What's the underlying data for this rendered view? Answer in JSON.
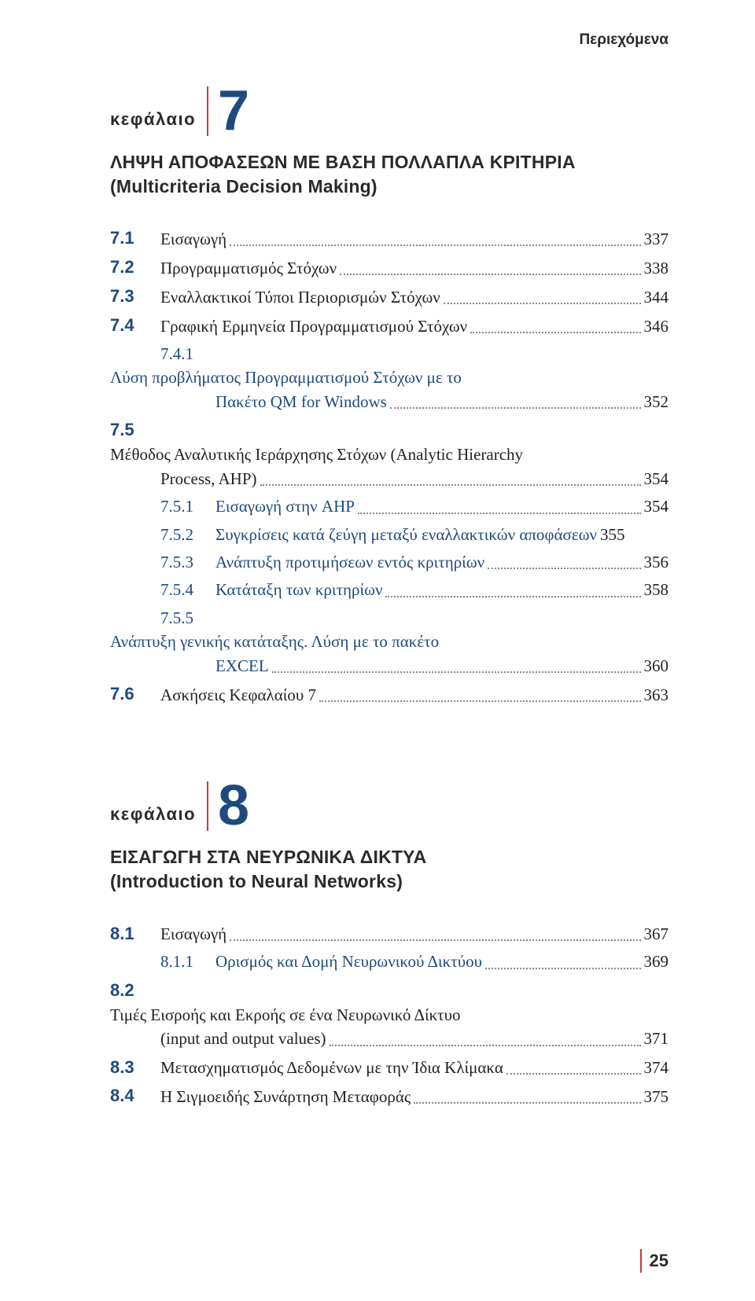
{
  "header": "Περιεχόμενα",
  "footer_page": "25",
  "chapter_word": "κεφάλαιο",
  "chapters": [
    {
      "num": "7",
      "title_l1": "ΛΗΨΗ ΑΠΟΦΑΣΕΩΝ ΜΕ ΒΑΣΗ ΠΟΛΛΑΠΛΑ ΚΡΙΤΗΡΙΑ",
      "title_l2": "(Multicriteria Decision Making)",
      "rows": [
        {
          "lvl": 1,
          "num": "7.1",
          "label": "Εισαγωγή",
          "page": "337"
        },
        {
          "lvl": 1,
          "num": "7.2",
          "label": "Προγραμματισμός Στόχων",
          "page": "338"
        },
        {
          "lvl": 1,
          "num": "7.3",
          "label": "Εναλλακτικοί Τύποι Περιορισμών Στόχων",
          "page": "344"
        },
        {
          "lvl": 1,
          "num": "7.4",
          "label": "Γραφική Ερμηνεία Προγραμματισμού Στόχων",
          "page": "346"
        },
        {
          "lvl": 2,
          "num": "7.4.1",
          "label": "Λύση προβλήματος Προγραμματισμού Στόχων με το",
          "wrap": "Πακέτο QM for Windows",
          "page": "352",
          "blue": true
        },
        {
          "lvl": 1,
          "num": "7.5",
          "label": "Μέθοδος Αναλυτικής Ιεράρχησης Στόχων (Analytic Hierarchy",
          "wrap": "Process, AHP)",
          "page": "354"
        },
        {
          "lvl": 2,
          "num": "7.5.1",
          "label": "Εισαγωγή στην AHP",
          "page": "354",
          "blue": true
        },
        {
          "lvl": 2,
          "num": "7.5.2",
          "label": "Συγκρίσεις κατά ζεύγη μεταξύ εναλλακτικών αποφάσεων",
          "page": "355",
          "blue": true,
          "tight": true
        },
        {
          "lvl": 2,
          "num": "7.5.3",
          "label": "Ανάπτυξη προτιμήσεων εντός κριτηρίων",
          "page": "356",
          "blue": true
        },
        {
          "lvl": 2,
          "num": "7.5.4",
          "label": "Κατάταξη των κριτηρίων",
          "page": "358",
          "blue": true
        },
        {
          "lvl": 2,
          "num": "7.5.5",
          "label": "Ανάπτυξη γενικής κατάταξης. Λύση με το πακέτο",
          "wrap": "EXCEL",
          "page": "360",
          "blue": true
        },
        {
          "lvl": 1,
          "num": "7.6",
          "label": "Ασκήσεις Κεφαλαίου 7",
          "page": "363"
        }
      ]
    },
    {
      "num": "8",
      "title_l1": "ΕΙΣΑΓΩΓΗ ΣΤΑ ΝΕΥΡΩΝΙΚΑ ΔΙΚΤΥΑ",
      "title_l2": "(Introduction to Neural Networks)",
      "rows": [
        {
          "lvl": 1,
          "num": "8.1",
          "label": "Εισαγωγή",
          "page": "367"
        },
        {
          "lvl": 2,
          "num": "8.1.1",
          "label": "Ορισμός και Δομή Νευρωνικού Δικτύου",
          "page": "369",
          "blue": true
        },
        {
          "lvl": 1,
          "num": "8.2",
          "label": "Τιμές Εισροής και Εκροής σε ένα Νευρωνικό Δίκτυο",
          "wrap": "(input and output values)",
          "page": "371"
        },
        {
          "lvl": 1,
          "num": "8.3",
          "label": "Μετασχηματισμός Δεδομένων με την Ίδια Κλίμακα",
          "page": "374"
        },
        {
          "lvl": 1,
          "num": "8.4",
          "label": "Η Σιγμοειδής Συνάρτηση Μεταφοράς",
          "page": "375"
        }
      ]
    }
  ]
}
